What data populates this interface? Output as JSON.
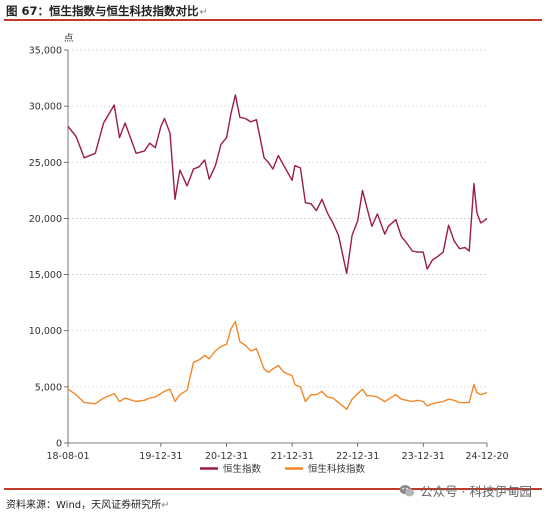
{
  "figure": {
    "title": "图 67：恒生指数与恒生科技指数对比",
    "paragraph_mark": "↵"
  },
  "source": {
    "text": "资料来源：Wind，天风证券研究所"
  },
  "watermark": {
    "text": "公众号 · 科技伊甸园",
    "icon": "wechat-icon"
  },
  "colors": {
    "hsi": "#9b1c47",
    "hstech": "#f0892a",
    "accent_rule": "#c0392b"
  },
  "chart_data": {
    "type": "line",
    "ylabel": "点",
    "ylim": [
      0,
      35000
    ],
    "yticks": [
      0,
      5000,
      10000,
      15000,
      20000,
      25000,
      30000,
      35000
    ],
    "ytick_labels": [
      "0",
      "5,000",
      "10,000",
      "15,000",
      "20,000",
      "25,000",
      "30,000",
      "35,000"
    ],
    "xlim": [
      "2018-08-01",
      "2024-12-20"
    ],
    "xticks": [
      "2018-08-01",
      "2019-12-31",
      "2020-12-31",
      "2021-12-31",
      "2022-12-31",
      "2023-12-31",
      "2024-12-20"
    ],
    "xtick_labels": [
      "18-08-01",
      "19-12-31",
      "20-12-31",
      "21-12-31",
      "22-12-31",
      "23-12-31",
      "24-12-20"
    ],
    "grid": "horizontal",
    "legend_position": "bottom-center",
    "series": [
      {
        "name": "恒生指数",
        "x": [
          "2018-08-01",
          "2018-09-15",
          "2018-10-30",
          "2018-12-31",
          "2019-02-15",
          "2019-04-15",
          "2019-05-15",
          "2019-06-15",
          "2019-08-15",
          "2019-09-30",
          "2019-10-30",
          "2019-11-30",
          "2019-12-31",
          "2020-01-20",
          "2020-02-20",
          "2020-03-19",
          "2020-04-15",
          "2020-05-25",
          "2020-06-30",
          "2020-07-31",
          "2020-08-31",
          "2020-09-25",
          "2020-10-30",
          "2020-11-30",
          "2020-12-31",
          "2021-01-25",
          "2021-02-18",
          "2021-03-15",
          "2021-04-15",
          "2021-05-15",
          "2021-06-15",
          "2021-07-28",
          "2021-08-20",
          "2021-09-15",
          "2021-10-15",
          "2021-11-15",
          "2021-12-31",
          "2022-01-15",
          "2022-02-15",
          "2022-03-15",
          "2022-04-15",
          "2022-05-15",
          "2022-06-15",
          "2022-07-15",
          "2022-08-15",
          "2022-09-15",
          "2022-10-31",
          "2022-11-30",
          "2022-12-31",
          "2023-01-27",
          "2023-02-20",
          "2023-03-20",
          "2023-04-20",
          "2023-05-31",
          "2023-06-20",
          "2023-07-31",
          "2023-08-31",
          "2023-09-30",
          "2023-10-31",
          "2023-11-30",
          "2023-12-31",
          "2024-01-22",
          "2024-02-20",
          "2024-03-20",
          "2024-04-20",
          "2024-05-20",
          "2024-06-20",
          "2024-07-20",
          "2024-08-20",
          "2024-09-12",
          "2024-10-08",
          "2024-10-25",
          "2024-11-15",
          "2024-12-05",
          "2024-12-20"
        ],
        "values": [
          28200,
          27300,
          25400,
          25800,
          28500,
          30100,
          27200,
          28500,
          25800,
          26000,
          26700,
          26300,
          28200,
          28900,
          27600,
          21700,
          24300,
          22900,
          24400,
          24600,
          25200,
          23500,
          24700,
          26600,
          27200,
          29400,
          31000,
          29000,
          28900,
          28600,
          28800,
          25400,
          25000,
          24400,
          25600,
          24700,
          23400,
          24700,
          24500,
          21400,
          21300,
          20700,
          21700,
          20500,
          19600,
          18500,
          15100,
          18500,
          19800,
          22500,
          21000,
          19300,
          20400,
          18600,
          19300,
          19900,
          18400,
          17800,
          17100,
          17000,
          17000,
          15500,
          16300,
          16600,
          17000,
          19400,
          18000,
          17300,
          17400,
          17100,
          23100,
          20500,
          19600,
          19800,
          20000
        ]
      },
      {
        "name": "恒生科技指数",
        "x": [
          "2018-08-01",
          "2018-09-15",
          "2018-10-30",
          "2018-12-31",
          "2019-02-15",
          "2019-04-15",
          "2019-05-15",
          "2019-06-15",
          "2019-08-15",
          "2019-09-30",
          "2019-10-30",
          "2019-11-30",
          "2019-12-31",
          "2020-01-20",
          "2020-02-20",
          "2020-03-19",
          "2020-04-15",
          "2020-05-25",
          "2020-06-30",
          "2020-07-31",
          "2020-08-31",
          "2020-09-25",
          "2020-10-30",
          "2020-11-30",
          "2020-12-31",
          "2021-01-25",
          "2021-02-18",
          "2021-03-15",
          "2021-04-15",
          "2021-05-15",
          "2021-06-15",
          "2021-07-28",
          "2021-08-20",
          "2021-09-15",
          "2021-10-15",
          "2021-11-15",
          "2021-12-31",
          "2022-01-15",
          "2022-02-15",
          "2022-03-15",
          "2022-04-15",
          "2022-05-15",
          "2022-06-15",
          "2022-07-15",
          "2022-08-15",
          "2022-09-15",
          "2022-10-31",
          "2022-11-30",
          "2022-12-31",
          "2023-01-27",
          "2023-02-20",
          "2023-03-20",
          "2023-04-20",
          "2023-05-31",
          "2023-06-20",
          "2023-07-31",
          "2023-08-31",
          "2023-09-30",
          "2023-10-31",
          "2023-11-30",
          "2023-12-31",
          "2024-01-22",
          "2024-02-20",
          "2024-03-20",
          "2024-04-20",
          "2024-05-20",
          "2024-06-20",
          "2024-07-20",
          "2024-08-20",
          "2024-09-12",
          "2024-10-08",
          "2024-10-25",
          "2024-11-15",
          "2024-12-05",
          "2024-12-20"
        ],
        "values": [
          4800,
          4300,
          3600,
          3500,
          4000,
          4400,
          3700,
          4000,
          3700,
          3800,
          4000,
          4100,
          4400,
          4600,
          4800,
          3700,
          4300,
          4700,
          7200,
          7400,
          7800,
          7500,
          8200,
          8600,
          8800,
          10200,
          10800,
          9000,
          8700,
          8200,
          8400,
          6600,
          6300,
          6600,
          6900,
          6300,
          6000,
          5200,
          5000,
          3700,
          4300,
          4300,
          4600,
          4100,
          4000,
          3600,
          3000,
          3900,
          4400,
          4800,
          4200,
          4200,
          4100,
          3700,
          3900,
          4300,
          3900,
          3800,
          3700,
          3800,
          3700,
          3300,
          3500,
          3600,
          3700,
          3900,
          3800,
          3600,
          3600,
          3600,
          5200,
          4500,
          4300,
          4400,
          4500
        ]
      }
    ]
  }
}
